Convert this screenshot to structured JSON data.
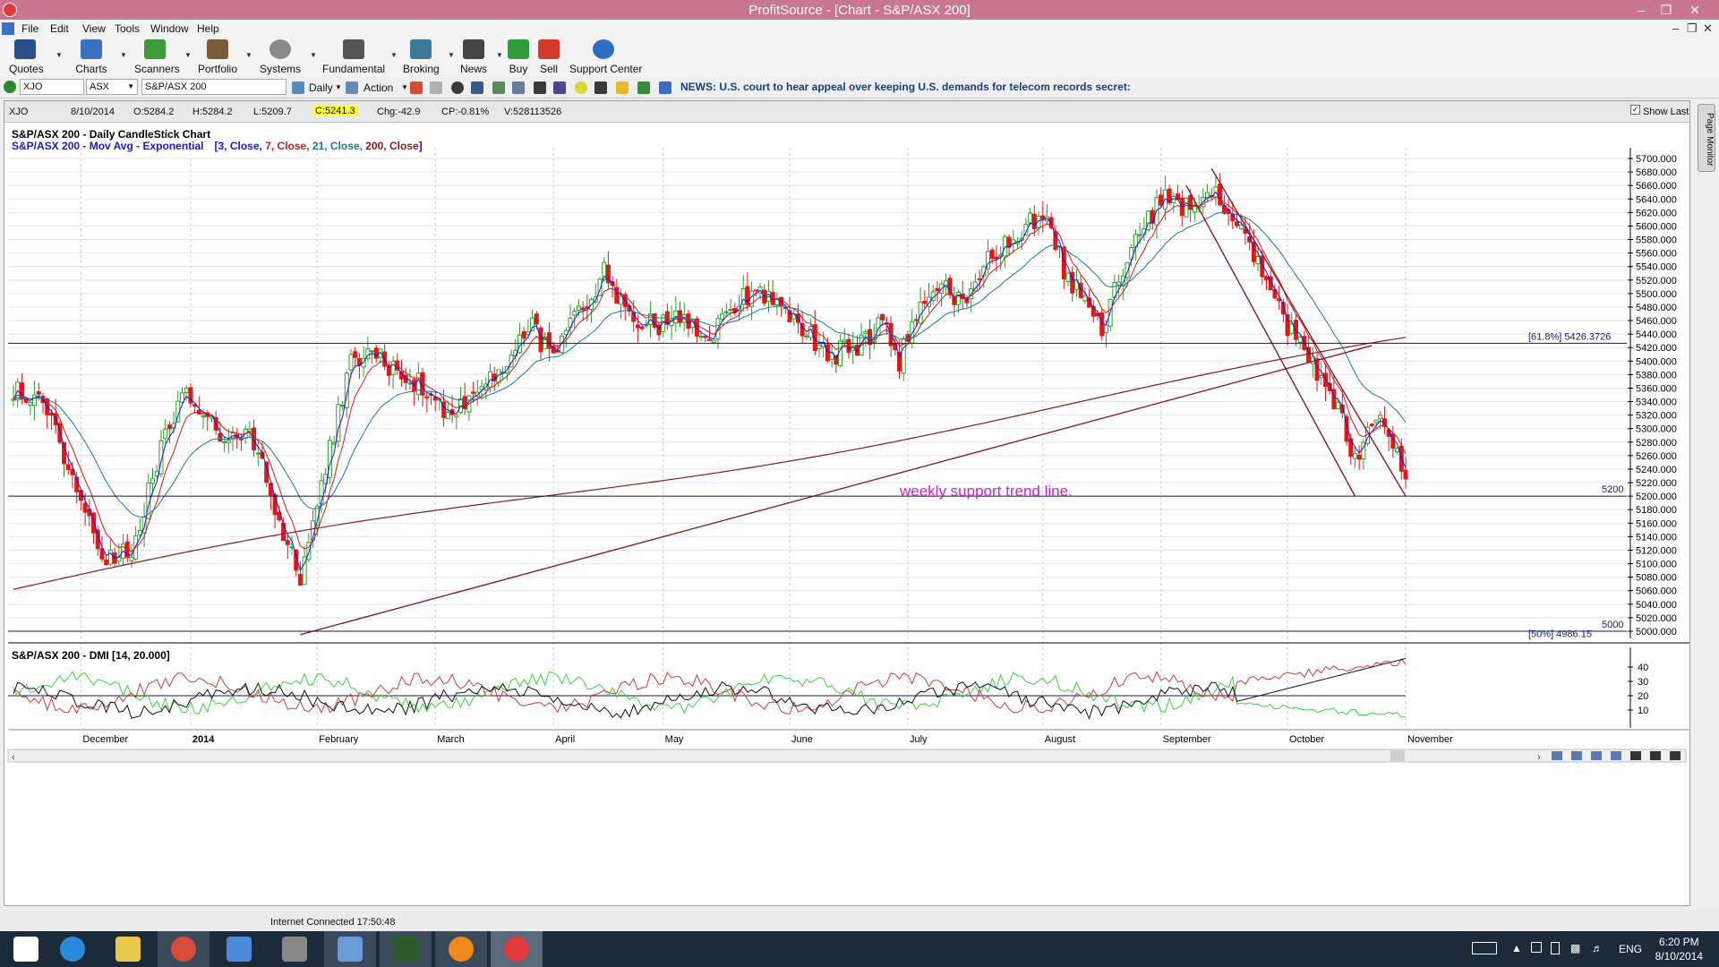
{
  "window": {
    "title": "ProfitSource - [Chart - S&P/ASX 200]"
  },
  "menu": [
    "File",
    "Edit",
    "View",
    "Tools",
    "Window",
    "Help"
  ],
  "toolbar": [
    {
      "label": "Quotes",
      "color": "#2b4f8c"
    },
    {
      "label": "Charts",
      "color": "#3a6fc4"
    },
    {
      "label": "Scanners",
      "color": "#3c9a3c"
    },
    {
      "label": "Portfolio",
      "color": "#7b5a3c"
    },
    {
      "label": "Systems",
      "color": "#8a8a8a"
    },
    {
      "label": "Fundamental",
      "color": "#555555"
    },
    {
      "label": "Broking",
      "color": "#3c7a9a"
    },
    {
      "label": "News",
      "color": "#444444"
    },
    {
      "label": "Buy",
      "color": "#2e9e3e"
    },
    {
      "label": "Sell",
      "color": "#d43a2a"
    },
    {
      "label": "Support Center",
      "color": "#2a6fc4"
    }
  ],
  "toolbar2": {
    "symbol": "XJO",
    "exchange": "ASX",
    "name": "S&P/ASX 200",
    "period": "Daily",
    "action": "Action",
    "news": "NEWS: U.S. court to hear appeal over keeping U.S. demands for telecom records secret:"
  },
  "infobar": {
    "symbol": "XJO",
    "date": "8/10/2014",
    "open": "O:5284.2",
    "high": "H:5284.2",
    "low": "L:5209.7",
    "close": "C:5241.3",
    "chg": "Chg:-42.9",
    "cp": "CP:-0.81%",
    "vol": "V:528113526",
    "show_last": "Show Last"
  },
  "chart_data": {
    "type": "candlestick",
    "title": "S&P/ASX 200 - Daily CandleStick Chart",
    "subtitle_prefix": "S&P/ASX 200 - Mov Avg - Exponential",
    "ma_params": [
      {
        "text": "[3, Close, ",
        "color": "#1a1ad0"
      },
      {
        "text": "7, Close, ",
        "color": "#d01a1a"
      },
      {
        "text": "21, Close, ",
        "color": "#1a7a9a"
      },
      {
        "text": "200, Close",
        "color": "#8a1a1a"
      },
      {
        "text": "]",
        "color": "#1a1ad0"
      }
    ],
    "ylim": [
      5000,
      5700
    ],
    "y_ticks": [
      5000,
      5020,
      5040,
      5060,
      5080,
      5100,
      5120,
      5140,
      5160,
      5180,
      5200,
      5220,
      5240,
      5260,
      5280,
      5300,
      5320,
      5340,
      5360,
      5380,
      5400,
      5420,
      5440,
      5460,
      5480,
      5500,
      5520,
      5540,
      5560,
      5580,
      5600,
      5620,
      5640,
      5660,
      5680,
      5700
    ],
    "x_labels": [
      "December",
      "2014",
      "February",
      "March",
      "April",
      "May",
      "June",
      "July",
      "August",
      "September",
      "October",
      "November"
    ],
    "anchors": [
      [
        0,
        5360
      ],
      [
        8,
        5330
      ],
      [
        16,
        5200
      ],
      [
        22,
        5100
      ],
      [
        28,
        5120
      ],
      [
        35,
        5270
      ],
      [
        40,
        5360
      ],
      [
        45,
        5330
      ],
      [
        50,
        5270
      ],
      [
        56,
        5300
      ],
      [
        62,
        5180
      ],
      [
        68,
        5080
      ],
      [
        74,
        5240
      ],
      [
        80,
        5400
      ],
      [
        86,
        5410
      ],
      [
        92,
        5380
      ],
      [
        98,
        5360
      ],
      [
        104,
        5320
      ],
      [
        110,
        5360
      ],
      [
        116,
        5380
      ],
      [
        122,
        5460
      ],
      [
        128,
        5400
      ],
      [
        134,
        5470
      ],
      [
        140,
        5530
      ],
      [
        146,
        5470
      ],
      [
        152,
        5450
      ],
      [
        158,
        5470
      ],
      [
        164,
        5420
      ],
      [
        170,
        5480
      ],
      [
        176,
        5510
      ],
      [
        182,
        5480
      ],
      [
        188,
        5440
      ],
      [
        194,
        5410
      ],
      [
        200,
        5420
      ],
      [
        206,
        5460
      ],
      [
        210,
        5400
      ],
      [
        214,
        5470
      ],
      [
        220,
        5510
      ],
      [
        226,
        5480
      ],
      [
        232,
        5560
      ],
      [
        238,
        5590
      ],
      [
        244,
        5620
      ],
      [
        250,
        5520
      ],
      [
        255,
        5480
      ],
      [
        258,
        5440
      ],
      [
        262,
        5520
      ],
      [
        268,
        5600
      ],
      [
        272,
        5640
      ],
      [
        278,
        5630
      ],
      [
        284,
        5650
      ],
      [
        290,
        5600
      ],
      [
        296,
        5530
      ],
      [
        302,
        5450
      ],
      [
        308,
        5400
      ],
      [
        314,
        5330
      ],
      [
        318,
        5250
      ],
      [
        322,
        5320
      ],
      [
        326,
        5290
      ],
      [
        330,
        5240
      ]
    ],
    "levels": [
      {
        "label": "[61.8%] 5426.3726",
        "value": 5426.37,
        "color": "#1a1a6a"
      },
      {
        "label": "5200",
        "value": 5200,
        "color": "#1a1a6a"
      },
      {
        "label": "5000",
        "value": 5000,
        "color": "#1a1a6a"
      },
      {
        "label": "[50%] 4986.15",
        "value": 4986.15,
        "color": "#1a1a6a"
      }
    ],
    "annotation": {
      "text": "weekly support trend line.",
      "color": "#d020d0"
    }
  },
  "dmi": {
    "title": "S&P/ASX 200 - DMI [14, 20.000]",
    "y_ticks": [
      10,
      20,
      30,
      40
    ],
    "threshold": 20
  },
  "status": {
    "connection": "Internet Connected 17:50:48"
  },
  "taskbar": {
    "apps": [
      {
        "name": "start-button",
        "color": "#ffffff"
      },
      {
        "name": "internet-explorer",
        "color": "#2a8ad8"
      },
      {
        "name": "file-explorer",
        "color": "#e8c84a"
      },
      {
        "name": "chrome",
        "color": "#d84a3a"
      },
      {
        "name": "calculator",
        "color": "#4a8ad8"
      },
      {
        "name": "app-grid",
        "color": "#888888"
      },
      {
        "name": "image-app",
        "color": "#6a9ad8"
      },
      {
        "name": "go-app",
        "color": "#2a7a2a"
      },
      {
        "name": "orange-app",
        "color": "#f08a1a"
      },
      {
        "name": "profitsource",
        "color": "#e03a3a"
      }
    ],
    "lang": "ENG",
    "time": "6:20 PM",
    "date": "8/10/2014"
  },
  "page_monitor": "Page Monitor"
}
